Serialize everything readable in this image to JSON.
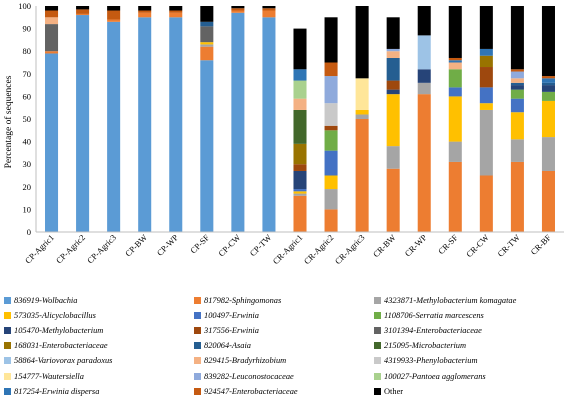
{
  "chart_data": {
    "type": "bar",
    "stacked": true,
    "ylabel": "Percentage of sequences",
    "ylim": [
      0,
      100
    ],
    "yticks": [
      0,
      10,
      20,
      30,
      40,
      50,
      60,
      70,
      80,
      90,
      100
    ],
    "grid": false,
    "legend_position": "bottom",
    "categories": [
      "CP-Agric1",
      "CP-Agric2",
      "CP-Agric3",
      "CP-BW",
      "CP-WP",
      "CP-SF",
      "CP-CW",
      "CP-TW",
      "CR-Agric1",
      "CR-Agric2",
      "CR-Agric3",
      "CR-BW",
      "CR-WP",
      "CR-SF",
      "CR-CW",
      "CR-TW",
      "CR-BF"
    ],
    "series": [
      {
        "name": "836919-Wolbachia",
        "color": "#5b9bd5",
        "values": [
          79,
          96,
          93,
          95,
          95,
          76,
          97,
          95,
          0,
          0,
          0,
          0,
          0,
          0,
          0,
          0,
          0
        ]
      },
      {
        "name": "817982-Sphingomonas",
        "color": "#ed7d31",
        "values": [
          1,
          0.5,
          1,
          2,
          2,
          6,
          1,
          3,
          16,
          10,
          50,
          28,
          61,
          31,
          25,
          31,
          27
        ]
      },
      {
        "name": "4323871-Methylobacterium komagatae",
        "color": "#a5a5a5",
        "values": [
          0,
          0,
          0,
          0,
          0,
          1,
          0,
          0,
          1,
          9,
          2,
          10,
          5,
          9,
          29,
          10,
          15
        ]
      },
      {
        "name": "573035-Alicyclobacillus",
        "color": "#ffc000",
        "values": [
          0,
          0,
          0,
          0,
          0,
          1,
          0,
          0,
          1,
          6,
          2,
          23,
          0,
          20,
          3,
          12,
          16
        ]
      },
      {
        "name": "100497-Erwinia",
        "color": "#4472c4",
        "values": [
          0,
          0,
          0,
          0,
          0,
          0,
          0,
          0,
          1,
          11,
          0,
          0,
          0,
          4,
          7,
          6,
          0
        ]
      },
      {
        "name": "1108706-Serratia marcescens",
        "color": "#70ad47",
        "values": [
          0,
          0,
          0,
          0,
          0,
          0,
          0,
          0,
          0,
          9,
          0,
          0,
          0,
          8,
          0,
          4,
          4
        ]
      },
      {
        "name": "105470-Methylobacterium",
        "color": "#264478",
        "values": [
          0,
          0,
          0,
          0,
          0,
          0,
          0,
          0,
          8,
          0,
          0,
          2,
          6,
          0,
          0,
          2,
          3
        ]
      },
      {
        "name": "317556-Erwinia",
        "color": "#9e480e",
        "values": [
          0,
          0,
          0,
          0,
          0,
          0,
          0,
          0,
          3,
          2,
          0,
          4,
          0,
          0,
          9,
          0,
          0
        ]
      },
      {
        "name": "3101394-Enterobacteriaceae",
        "color": "#636363",
        "values": [
          12,
          0,
          0,
          0,
          0,
          7,
          0,
          0,
          0,
          0,
          0,
          0,
          0,
          0,
          0,
          0,
          0
        ]
      },
      {
        "name": "168031-Enterobacteriaceae",
        "color": "#997300",
        "values": [
          0,
          0,
          0,
          0,
          0,
          0,
          0,
          0,
          9,
          0,
          0,
          0,
          0,
          0,
          5,
          0,
          0
        ]
      },
      {
        "name": "820064-Asaia",
        "color": "#255e91",
        "values": [
          0,
          0,
          0,
          0,
          0,
          2,
          0,
          0,
          0,
          0,
          0,
          10,
          0,
          0,
          0,
          1,
          1
        ]
      },
      {
        "name": "215095-Microbacterium",
        "color": "#43682b",
        "values": [
          0,
          0,
          0,
          0,
          0,
          0,
          0,
          0,
          15,
          0,
          0,
          0,
          0,
          0,
          0,
          0,
          0
        ]
      },
      {
        "name": "58864-Variovorax paradoxus",
        "color": "#9dc3e6",
        "values": [
          0,
          0,
          0,
          0,
          0,
          0,
          0,
          0,
          0,
          0,
          0,
          0,
          15,
          0,
          0,
          0,
          0
        ]
      },
      {
        "name": "829415-Bradyrhizobium",
        "color": "#f4b183",
        "values": [
          3,
          0,
          0,
          0,
          0,
          0,
          0,
          0,
          5,
          0,
          0,
          3,
          0,
          3,
          0,
          2,
          0
        ]
      },
      {
        "name": "4319933-Phenylobacterium",
        "color": "#c9c9c9",
        "values": [
          0,
          0,
          0,
          0,
          0,
          0,
          0,
          0,
          0,
          10,
          0,
          0,
          0,
          0,
          0,
          0,
          0
        ]
      },
      {
        "name": "154777-Wautersiella",
        "color": "#ffe699",
        "values": [
          0,
          0,
          0,
          0,
          0,
          0,
          0,
          0,
          0,
          0,
          14,
          0,
          0,
          0,
          0,
          0,
          0
        ]
      },
      {
        "name": "839282-Leuconostocaceae",
        "color": "#8faadc",
        "values": [
          0,
          0,
          0,
          0,
          0,
          0,
          0,
          0,
          0,
          12,
          0,
          1,
          0,
          0,
          0,
          3,
          0
        ]
      },
      {
        "name": "100027-Pantoea agglomerans",
        "color": "#a9d18e",
        "values": [
          0,
          0,
          0,
          0,
          0,
          0,
          0,
          0,
          8,
          0,
          0,
          0,
          0,
          0,
          0,
          0,
          0
        ]
      },
      {
        "name": "817254-Erwinia dispersa",
        "color": "#2f75b5",
        "values": [
          0,
          0,
          0,
          0,
          0,
          0,
          0,
          0,
          5,
          0,
          0,
          0,
          0,
          1,
          3,
          0,
          2
        ]
      },
      {
        "name": "924547-Enterobacteriaceae",
        "color": "#c55a11",
        "values": [
          3,
          2,
          4,
          1,
          1,
          0,
          1,
          1,
          0,
          6,
          0,
          0,
          0,
          1,
          0,
          1,
          1
        ]
      },
      {
        "name": "Other",
        "color": "#000000",
        "values": [
          2,
          1.5,
          2,
          2,
          2,
          7,
          1,
          1,
          18,
          20,
          32,
          14,
          13,
          23,
          19,
          28,
          31
        ]
      }
    ]
  }
}
